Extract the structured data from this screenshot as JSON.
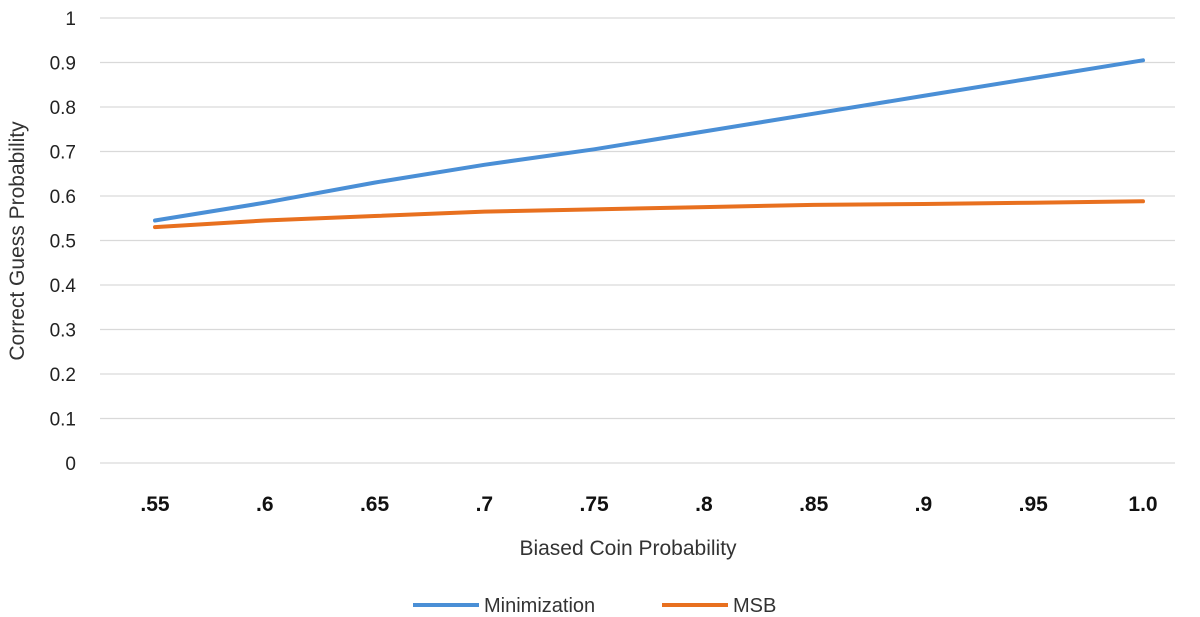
{
  "chart_data": {
    "type": "line",
    "categories": [
      ".55",
      ".6",
      ".65",
      ".7",
      ".75",
      ".8",
      ".85",
      ".9",
      ".95",
      "1.0"
    ],
    "series": [
      {
        "name": "Minimization",
        "color": "#4a8fd6",
        "values": [
          0.545,
          0.585,
          0.63,
          0.67,
          0.705,
          0.745,
          0.785,
          0.825,
          0.865,
          0.905
        ]
      },
      {
        "name": "MSB",
        "color": "#e8701f",
        "values": [
          0.53,
          0.545,
          0.555,
          0.565,
          0.57,
          0.575,
          0.58,
          0.582,
          0.585,
          0.588
        ]
      }
    ],
    "yticks": [
      "0",
      "0.1",
      "0.2",
      "0.3",
      "0.4",
      "0.5",
      "0.6",
      "0.7",
      "0.8",
      "0.9",
      "1"
    ],
    "ylim": [
      0,
      1
    ],
    "xlabel": "Biased Coin Probability",
    "ylabel": "Correct Guess Probability",
    "title": "",
    "grid": "horizontal",
    "legend": "bottom-center"
  }
}
